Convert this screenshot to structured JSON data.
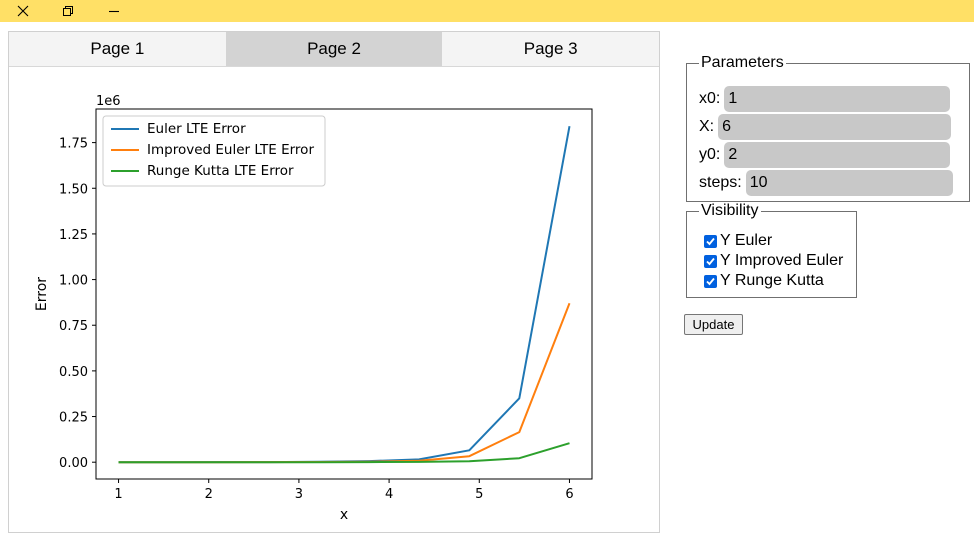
{
  "window": {
    "controls": [
      "close-icon",
      "restore-icon",
      "minimize-icon"
    ],
    "accent_color": "#ffe066"
  },
  "tabs": [
    {
      "label": "Page 1",
      "active": false
    },
    {
      "label": "Page 2",
      "active": true
    },
    {
      "label": "Page 3",
      "active": false
    }
  ],
  "parameters": {
    "legend": "Parameters",
    "fields": [
      {
        "label": "x0:",
        "value": "1"
      },
      {
        "label": "X:",
        "value": "6"
      },
      {
        "label": "y0:",
        "value": "2"
      },
      {
        "label": "steps:",
        "value": "10"
      }
    ]
  },
  "visibility": {
    "legend": "Visibility",
    "items": [
      {
        "label": "Y Euler",
        "checked": true
      },
      {
        "label": "Y Improved Euler",
        "checked": true
      },
      {
        "label": "Y Runge Kutta",
        "checked": true
      }
    ]
  },
  "update_label": "Update",
  "chart_data": {
    "type": "line",
    "xlabel": "x",
    "ylabel": "Error",
    "offset_label": "1e6",
    "xlim": [
      0.75,
      6.25
    ],
    "ylim": [
      -0.092,
      1.934
    ],
    "x_ticks": [
      1,
      2,
      3,
      4,
      5,
      6
    ],
    "y_ticks": [
      0.0,
      0.25,
      0.5,
      0.75,
      1.0,
      1.25,
      1.5,
      1.75
    ],
    "y_tick_labels": [
      "0.00",
      "0.25",
      "0.50",
      "0.75",
      "1.00",
      "1.25",
      "1.50",
      "1.75"
    ],
    "grid": false,
    "legend_position": "upper-left",
    "x": [
      1.0,
      1.5556,
      2.1111,
      2.6667,
      3.2222,
      3.7778,
      4.3333,
      4.8889,
      5.4444,
      6.0
    ],
    "series": [
      {
        "name": "Euler LTE Error",
        "color": "#1f77b4",
        "values": [
          0.0,
          0.0001,
          0.0003,
          0.0008,
          0.0022,
          0.0058,
          0.0155,
          0.065,
          0.35,
          1.84
        ]
      },
      {
        "name": "Improved Euler LTE Error",
        "color": "#ff7f0e",
        "values": [
          0.0,
          0.0001,
          0.0002,
          0.0005,
          0.0012,
          0.003,
          0.0075,
          0.033,
          0.165,
          0.87
        ]
      },
      {
        "name": "Runge Kutta LTE Error",
        "color": "#2ca02c",
        "values": [
          0.0,
          0.0,
          0.0001,
          0.0001,
          0.0002,
          0.0006,
          0.0015,
          0.005,
          0.022,
          0.104
        ]
      }
    ]
  }
}
